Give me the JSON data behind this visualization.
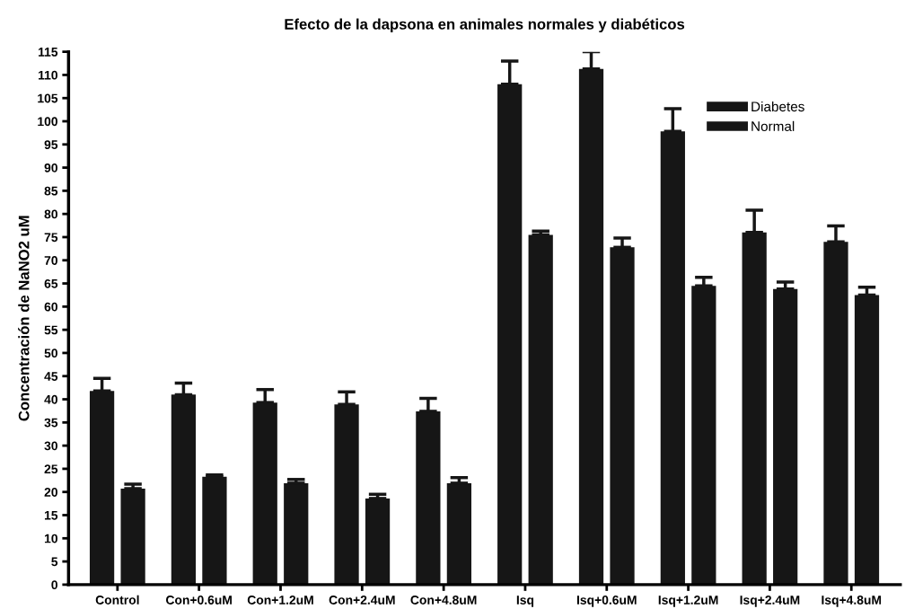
{
  "chart_data": {
    "type": "bar",
    "title": "Efecto de la dapsona en animales normales y diabéticos",
    "ylabel": "Concentración de NaNO2 uM",
    "categories": [
      "Control",
      "Con+0.6uM",
      "Con+1.2uM",
      "Con+2.4uM",
      "Con+4.8uM",
      "Isq",
      "Isq+0.6uM",
      "Isq+1.2uM",
      "Isq+2.4uM",
      "Isq+4.8uM"
    ],
    "series": [
      {
        "name": "Diabetes",
        "color": "#161616",
        "values": [
          41.8,
          41,
          39.3,
          38.9,
          37.4,
          108,
          111.3,
          97.8,
          76,
          74
        ],
        "errors": [
          [
            41.8,
            44.5
          ],
          [
            41,
            43.5
          ],
          [
            39.3,
            42.1
          ],
          [
            38.9,
            41.6
          ],
          [
            37.4,
            40.2
          ],
          [
            108,
            113
          ],
          [
            111.3,
            115
          ],
          [
            97.8,
            102.7
          ],
          [
            76,
            80.8
          ],
          [
            74,
            77.4
          ]
        ]
      },
      {
        "name": "Normal",
        "color": "#161616",
        "values": [
          20.7,
          23.3,
          21.9,
          18.6,
          21.9,
          75.5,
          72.8,
          64.5,
          63.8,
          62.5
        ],
        "errors": [
          [
            20.7,
            21.7
          ],
          [
            23.3,
            23.7
          ],
          [
            21.9,
            22.7
          ],
          [
            18.6,
            19.5
          ],
          [
            21.9,
            23.1
          ],
          [
            75.5,
            76.3
          ],
          [
            72.8,
            74.8
          ],
          [
            64.5,
            66.3
          ],
          [
            63.8,
            65.3
          ],
          [
            62.5,
            64.2
          ]
        ]
      }
    ],
    "ylim": [
      0,
      115
    ],
    "yticks": [
      0,
      5,
      10,
      15,
      20,
      25,
      30,
      35,
      40,
      45,
      50,
      55,
      60,
      65,
      70,
      75,
      80,
      85,
      90,
      95,
      100,
      105,
      110,
      115
    ],
    "grid": false,
    "legend": "top right"
  }
}
